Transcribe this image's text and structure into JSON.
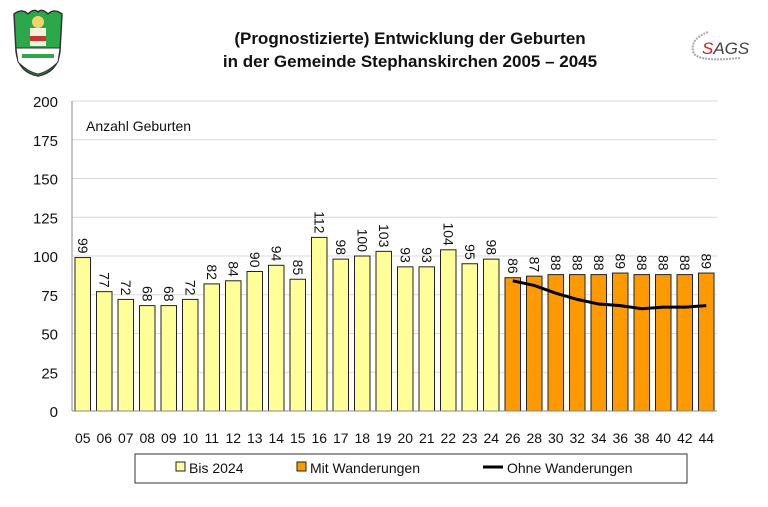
{
  "logos": {
    "left": "Stephanskirchen coat of arms",
    "right": "SAGS"
  },
  "chart_data": {
    "type": "bar",
    "title": [
      "(Prognostizierte) Entwicklung der Geburten",
      "in der Gemeinde Stephanskirchen 2005 – 2045"
    ],
    "ylabel": "Anzahl Geburten",
    "ylim": [
      0,
      200
    ],
    "yticks": [
      0,
      25,
      50,
      75,
      100,
      125,
      150,
      175,
      200
    ],
    "grid": true,
    "legend_position": "bottom",
    "categories": [
      "05",
      "06",
      "07",
      "08",
      "09",
      "10",
      "11",
      "12",
      "13",
      "14",
      "15",
      "16",
      "17",
      "18",
      "19",
      "20",
      "21",
      "22",
      "23",
      "24",
      "26",
      "28",
      "30",
      "32",
      "34",
      "36",
      "38",
      "40",
      "42",
      "44"
    ],
    "series": [
      {
        "name": "Bis 2024",
        "type": "bar",
        "color": "#FFFF99",
        "values": [
          99,
          77,
          72,
          68,
          68,
          72,
          82,
          84,
          90,
          94,
          85,
          112,
          98,
          100,
          103,
          93,
          93,
          104,
          95,
          98,
          null,
          null,
          null,
          null,
          null,
          null,
          null,
          null,
          null,
          null
        ]
      },
      {
        "name": "Mit Wanderungen",
        "type": "bar",
        "color": "#FF9900",
        "values": [
          null,
          null,
          null,
          null,
          null,
          null,
          null,
          null,
          null,
          null,
          null,
          null,
          null,
          null,
          null,
          null,
          null,
          null,
          null,
          null,
          86,
          87,
          88,
          88,
          88,
          89,
          88,
          88,
          88,
          89
        ]
      },
      {
        "name": "Ohne Wanderungen",
        "type": "line",
        "color": "#000000",
        "values": [
          null,
          null,
          null,
          null,
          null,
          null,
          null,
          null,
          null,
          null,
          null,
          null,
          null,
          null,
          null,
          null,
          null,
          null,
          null,
          null,
          84,
          81,
          76,
          72,
          69,
          68,
          66,
          67,
          67,
          68
        ]
      }
    ]
  }
}
